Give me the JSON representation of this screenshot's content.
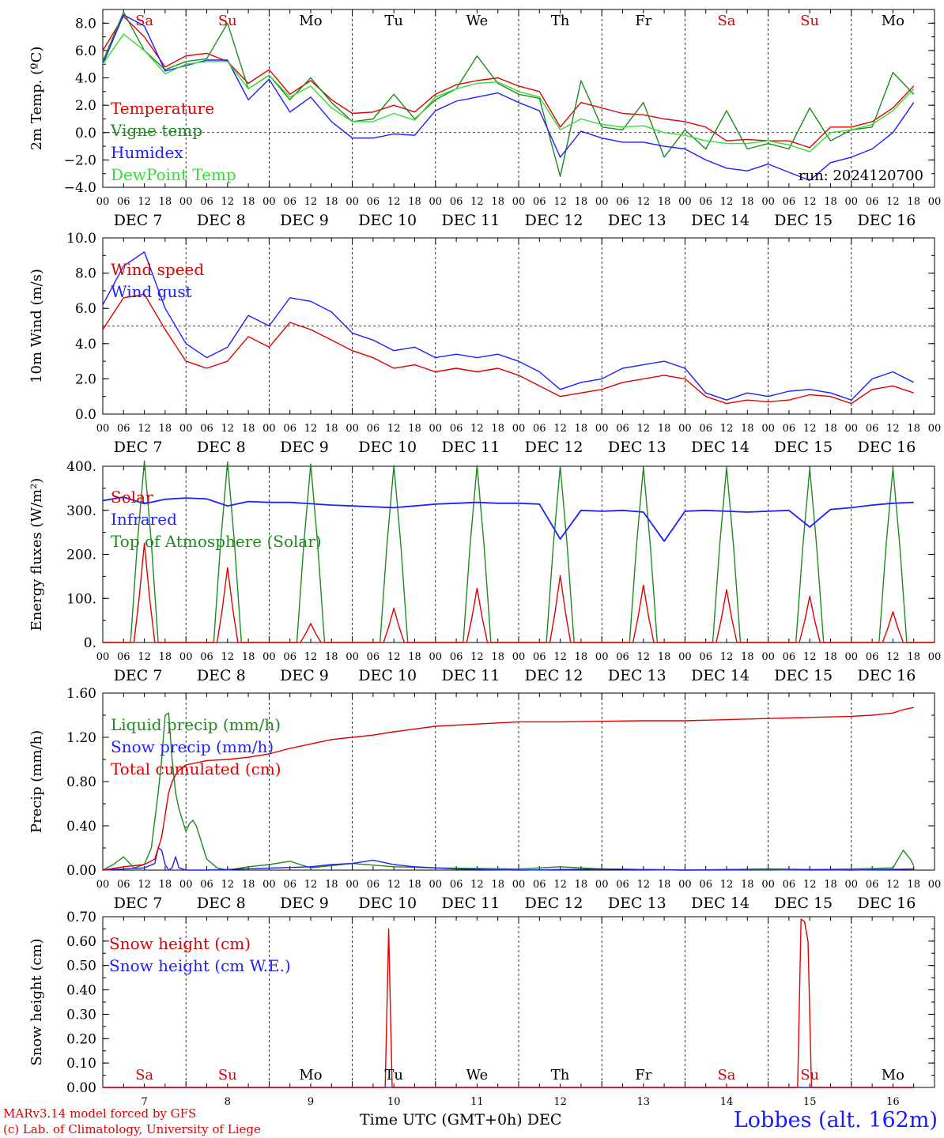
{
  "chart_data": [
    {
      "type": "line",
      "ylabel": "2m Temp. (ºC)",
      "ylim": [
        -4,
        9
      ],
      "yticks": [
        "8.0",
        "6.0",
        "4.0",
        "2.0",
        "0.0",
        "−2.0",
        "−4.0"
      ],
      "ytick_values": [
        8,
        6,
        4,
        2,
        0,
        -2,
        -4
      ],
      "reference_line": 0,
      "run_label": "run: 2024120700",
      "x_hours": [
        0,
        6,
        12,
        18,
        24,
        30,
        36,
        42,
        48,
        54,
        60,
        66,
        72,
        78,
        84,
        90,
        96,
        102,
        108,
        114,
        120,
        126,
        132,
        138,
        144,
        150,
        156,
        162,
        168,
        174,
        180,
        186,
        192,
        198,
        204,
        210,
        216,
        222,
        228,
        234
      ],
      "series": [
        {
          "name": "Temperature",
          "color": "#e00000",
          "values": [
            6.0,
            8.5,
            7.0,
            4.8,
            5.6,
            5.8,
            5.2,
            3.6,
            4.6,
            2.8,
            3.8,
            2.4,
            1.4,
            1.5,
            2.0,
            1.5,
            2.8,
            3.5,
            3.8,
            4.0,
            3.4,
            3.0,
            0.4,
            2.2,
            1.8,
            1.4,
            1.3,
            1.0,
            0.8,
            0.4,
            -0.6,
            -0.5,
            -0.6,
            -0.6,
            -1.1,
            0.4,
            0.4,
            0.8,
            1.8,
            3.4
          ]
        },
        {
          "name": "Vigne temp",
          "color": "#1e8a1e",
          "values": [
            5.2,
            8.8,
            6.0,
            4.6,
            5.2,
            5.4,
            8.0,
            3.2,
            4.2,
            2.4,
            4.0,
            2.2,
            0.8,
            1.0,
            2.8,
            1.0,
            2.4,
            3.2,
            5.6,
            3.6,
            2.8,
            2.5,
            -3.2,
            3.8,
            0.4,
            0.2,
            2.2,
            -1.8,
            0.2,
            -1.2,
            1.6,
            -1.2,
            -0.8,
            -1.2,
            1.8,
            -0.6,
            0.2,
            0.4,
            4.4,
            2.8
          ]
        },
        {
          "name": "Humidex",
          "color": "#1e1eff",
          "values": [
            5.0,
            8.6,
            7.8,
            4.5,
            4.9,
            5.3,
            5.3,
            2.4,
            3.9,
            1.5,
            2.6,
            0.8,
            -0.4,
            -0.4,
            -0.1,
            -0.2,
            1.6,
            2.3,
            2.6,
            2.9,
            2.2,
            1.6,
            -1.8,
            0.1,
            -0.4,
            -0.7,
            -0.7,
            -1.0,
            -1.2,
            -2.0,
            -2.6,
            -2.8,
            -2.3,
            -2.9,
            -3.5,
            -2.2,
            -1.8,
            -1.2,
            0.0,
            2.2
          ]
        },
        {
          "name": "DewPoint Temp",
          "color": "#33dd33",
          "values": [
            5.0,
            7.2,
            6.0,
            4.3,
            5.0,
            5.2,
            5.2,
            3.2,
            4.2,
            2.6,
            3.4,
            1.8,
            0.8,
            0.8,
            1.4,
            0.9,
            2.6,
            3.2,
            3.6,
            3.7,
            3.0,
            2.6,
            0.2,
            1.0,
            0.6,
            0.4,
            0.5,
            0.0,
            -0.2,
            -0.6,
            -0.8,
            -0.8,
            -0.6,
            -0.9,
            -1.4,
            0.0,
            0.2,
            0.6,
            1.6,
            3.2
          ]
        }
      ]
    },
    {
      "type": "line",
      "ylabel": "10m Wind (m/s)",
      "ylim": [
        0,
        10
      ],
      "yticks": [
        "10.0",
        "8.0",
        "6.0",
        "4.0",
        "2.0",
        "0.0"
      ],
      "ytick_values": [
        10,
        8,
        6,
        4,
        2,
        0
      ],
      "reference_line": 5,
      "x_hours": [
        0,
        6,
        12,
        18,
        24,
        30,
        36,
        42,
        48,
        54,
        60,
        66,
        72,
        78,
        84,
        90,
        96,
        102,
        108,
        114,
        120,
        126,
        132,
        138,
        144,
        150,
        156,
        162,
        168,
        174,
        180,
        186,
        192,
        198,
        204,
        210,
        216,
        222,
        228,
        234
      ],
      "series": [
        {
          "name": "Wind speed",
          "color": "#e00000",
          "values": [
            4.8,
            6.6,
            6.8,
            4.8,
            3.0,
            2.6,
            3.0,
            4.4,
            3.8,
            5.2,
            4.8,
            4.2,
            3.6,
            3.2,
            2.6,
            2.8,
            2.4,
            2.6,
            2.4,
            2.6,
            2.2,
            1.6,
            1.0,
            1.2,
            1.4,
            1.8,
            2.0,
            2.2,
            2.0,
            1.0,
            0.6,
            0.8,
            0.7,
            0.8,
            1.1,
            1.0,
            0.6,
            1.4,
            1.6,
            1.2
          ]
        },
        {
          "name": "Wind gust",
          "color": "#1e1eff",
          "values": [
            6.2,
            8.4,
            9.2,
            6.0,
            4.0,
            3.2,
            3.8,
            5.6,
            5.0,
            6.6,
            6.4,
            5.8,
            4.6,
            4.2,
            3.6,
            3.8,
            3.2,
            3.4,
            3.2,
            3.4,
            3.0,
            2.4,
            1.4,
            1.8,
            2.0,
            2.6,
            2.8,
            3.0,
            2.6,
            1.2,
            0.8,
            1.2,
            1.0,
            1.3,
            1.4,
            1.2,
            0.8,
            2.0,
            2.4,
            1.8
          ]
        }
      ]
    },
    {
      "type": "line",
      "ylabel": "Energy fluxes (W/m²)",
      "ylim": [
        0,
        400
      ],
      "yticks": [
        "400.",
        "300.",
        "200.",
        "100.",
        "0."
      ],
      "ytick_values": [
        400,
        300,
        200,
        100,
        0
      ],
      "daily_peaks": {
        "Solar": [
          225,
          170,
          43,
          78,
          123,
          152,
          130,
          120,
          105,
          70
        ],
        "Top of Atmosphere (Solar)": [
          412,
          410,
          405,
          402,
          402,
          400,
          398,
          398,
          395,
          395
        ]
      },
      "series": [
        {
          "name": "Solar",
          "color": "#e00000"
        },
        {
          "name": "Infrared",
          "color": "#1e1eff",
          "x_hours": [
            0,
            6,
            12,
            18,
            24,
            30,
            36,
            42,
            48,
            54,
            60,
            66,
            72,
            78,
            84,
            90,
            96,
            102,
            108,
            114,
            120,
            126,
            132,
            138,
            144,
            150,
            156,
            162,
            168,
            174,
            180,
            186,
            192,
            198,
            204,
            210,
            216,
            222,
            228,
            234
          ],
          "values": [
            322,
            330,
            315,
            325,
            328,
            326,
            310,
            320,
            318,
            318,
            315,
            312,
            310,
            308,
            306,
            310,
            314,
            316,
            318,
            316,
            316,
            314,
            235,
            300,
            298,
            300,
            296,
            230,
            298,
            300,
            298,
            296,
            298,
            300,
            262,
            302,
            306,
            312,
            316,
            318
          ]
        },
        {
          "name": "Top of Atmosphere (Solar)",
          "color": "#1e8a1e"
        }
      ]
    },
    {
      "type": "line",
      "ylabel": "Precip (mm/h)",
      "ylim": [
        0,
        1.6
      ],
      "yticks": [
        "1.60",
        "1.20",
        "0.80",
        "0.40",
        "0.00"
      ],
      "ytick_values": [
        1.6,
        1.2,
        0.8,
        0.4,
        0
      ],
      "series": [
        {
          "name": "Liquid precip (mm/h)",
          "color": "#1e8a1e",
          "x_hours": [
            0,
            3,
            6,
            9,
            12,
            14,
            16,
            17,
            18,
            19,
            20,
            21,
            22,
            24,
            25,
            26,
            27,
            28,
            30,
            33,
            36,
            42,
            48,
            54,
            60,
            72,
            84,
            96,
            120,
            132,
            144,
            168,
            192,
            216,
            228,
            231,
            233,
            234
          ],
          "values": [
            0.0,
            0.05,
            0.12,
            0.02,
            0.05,
            0.2,
            0.7,
            1.0,
            1.4,
            1.42,
            1.0,
            0.7,
            0.55,
            0.35,
            0.42,
            0.45,
            0.4,
            0.3,
            0.1,
            0.02,
            0.0,
            0.03,
            0.05,
            0.08,
            0.02,
            0.06,
            0.03,
            0.02,
            0.01,
            0.03,
            0.01,
            0.0,
            0.0,
            0.01,
            0.02,
            0.18,
            0.1,
            0.04
          ]
        },
        {
          "name": "Snow precip (mm/h)",
          "color": "#1e1eff",
          "x_hours": [
            0,
            12,
            15,
            16,
            17,
            18,
            19,
            20,
            21,
            22,
            23,
            24,
            30,
            60,
            66,
            72,
            78,
            84,
            90,
            96,
            102,
            120,
            144,
            168,
            192,
            216,
            234
          ],
          "values": [
            0.0,
            0.02,
            0.06,
            0.2,
            0.18,
            0.05,
            0.0,
            0.02,
            0.12,
            0.02,
            0.01,
            0.0,
            0.0,
            0.03,
            0.05,
            0.06,
            0.09,
            0.05,
            0.03,
            0.02,
            0.01,
            0.0,
            0.01,
            0.0,
            0.01,
            0.0,
            0.01
          ]
        },
        {
          "name": "Total cumulated (cm)",
          "color": "#e00000",
          "x_hours": [
            0,
            6,
            12,
            15,
            17,
            18,
            19,
            20,
            21,
            22,
            23,
            24,
            27,
            30,
            36,
            42,
            48,
            54,
            60,
            66,
            72,
            78,
            84,
            96,
            108,
            120,
            132,
            144,
            156,
            168,
            180,
            192,
            204,
            216,
            222,
            228,
            231,
            234
          ],
          "values": [
            0.0,
            0.03,
            0.05,
            0.1,
            0.3,
            0.5,
            0.7,
            0.8,
            0.86,
            0.9,
            0.93,
            0.95,
            0.97,
            0.99,
            1.0,
            1.02,
            1.05,
            1.1,
            1.14,
            1.18,
            1.2,
            1.22,
            1.25,
            1.3,
            1.32,
            1.34,
            1.34,
            1.345,
            1.35,
            1.35,
            1.36,
            1.37,
            1.38,
            1.39,
            1.4,
            1.42,
            1.45,
            1.47
          ]
        }
      ]
    },
    {
      "type": "line",
      "ylabel": "Snow height (cm)",
      "ylim": [
        0,
        0.7
      ],
      "yticks": [
        "0.70",
        "0.60",
        "0.50",
        "0.40",
        "0.30",
        "0.20",
        "0.10",
        "0.00"
      ],
      "ytick_values": [
        0.7,
        0.6,
        0.5,
        0.4,
        0.3,
        0.2,
        0.1,
        0
      ],
      "series": [
        {
          "name": "Snow height (cm)",
          "color": "#e00000",
          "x_hours": [
            0,
            81.5,
            82.5,
            83.5,
            200.5,
            201.5,
            202.5,
            203.5,
            204.5,
            234
          ],
          "values": [
            0,
            0,
            0.65,
            0,
            0,
            0.69,
            0.68,
            0.6,
            0,
            0
          ]
        },
        {
          "name": "Snow height (cm W.E.)",
          "color": "#1e1eff",
          "x_hours": [
            0,
            234
          ],
          "values": [
            0,
            0
          ]
        }
      ]
    }
  ],
  "x_axis": {
    "hour_labels": [
      "00",
      "06",
      "12",
      "18"
    ],
    "end_label": "00",
    "date_labels": [
      "DEC  7",
      "DEC  8",
      "DEC  9",
      "DEC 10",
      "DEC 11",
      "DEC 12",
      "DEC 13",
      "DEC 14",
      "DEC 15",
      "DEC 16"
    ],
    "day_numbers": [
      "7",
      "8",
      "9",
      "10",
      "11",
      "12",
      "13",
      "14",
      "15",
      "16"
    ],
    "weekdays": [
      "Sa",
      "Su",
      "Mo",
      "Tu",
      "We",
      "Th",
      "Fr",
      "Sa",
      "Su",
      "Mo"
    ],
    "weekend_flags": [
      true,
      true,
      false,
      false,
      false,
      false,
      false,
      true,
      true,
      false
    ],
    "title": "Time UTC (GMT+0h)",
    "month": "DEC"
  },
  "footer": {
    "model_line": "MARv3.14 model forced by GFS",
    "credit_line": "(c) Lab. of Climatology, University of Liege",
    "station": "Lobbes (alt. 162m)"
  },
  "colors": {
    "weekend": "#e00000",
    "weekday": "#000000"
  }
}
